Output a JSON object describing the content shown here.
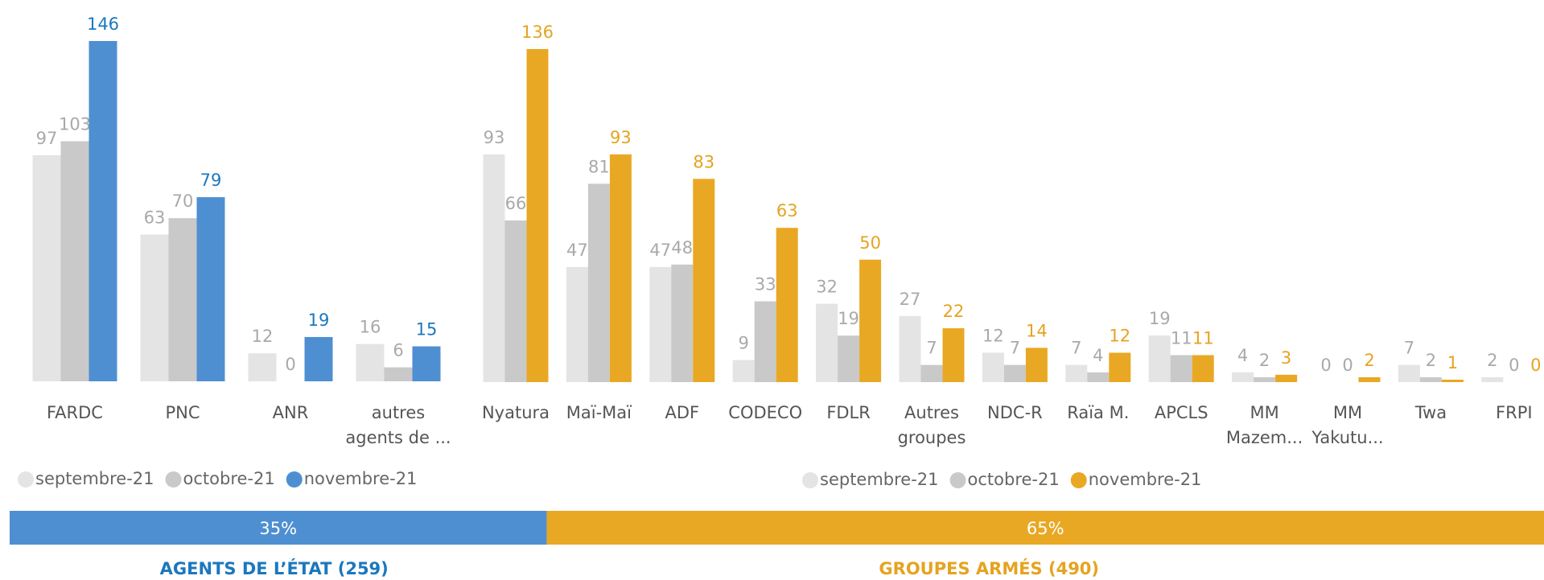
{
  "chart_data": [
    {
      "type": "bar",
      "categories": [
        "FARDC",
        "PNC",
        "ANR",
        "autres agents de ..."
      ],
      "series": [
        {
          "name": "septembre-21",
          "color": "#e4e4e4",
          "label_color": "#a9a9a9",
          "values": [
            97,
            63,
            12,
            16
          ]
        },
        {
          "name": "octobre-21",
          "color": "#c9c9c9",
          "label_color": "#a9a9a9",
          "values": [
            103,
            70,
            0,
            6
          ]
        },
        {
          "name": "novembre-21",
          "color": "#4e8fd1",
          "label_color": "#1b78bd",
          "values": [
            146,
            79,
            19,
            15
          ]
        }
      ]
    },
    {
      "type": "bar",
      "categories": [
        "Nyatura",
        "Maï-Maï",
        "ADF",
        "CODECO",
        "FDLR",
        "Autres groupes",
        "NDC-R",
        "Raïa M.",
        "APCLS",
        "MM Mazem...",
        "MM Yakutu...",
        "Twa",
        "FRPI"
      ],
      "series": [
        {
          "name": "septembre-21",
          "color": "#e4e4e4",
          "label_color": "#a9a9a9",
          "values": [
            93,
            47,
            47,
            9,
            32,
            27,
            12,
            7,
            19,
            4,
            0,
            7,
            2
          ]
        },
        {
          "name": "octobre-21",
          "color": "#c9c9c9",
          "label_color": "#a9a9a9",
          "values": [
            66,
            81,
            48,
            33,
            19,
            7,
            7,
            4,
            11,
            2,
            0,
            2,
            0
          ]
        },
        {
          "name": "novembre-21",
          "color": "#e9a823",
          "label_color": "#e6a320",
          "values": [
            136,
            93,
            83,
            63,
            50,
            22,
            14,
            12,
            11,
            3,
            2,
            1,
            0
          ]
        }
      ]
    },
    {
      "type": "split",
      "series": [
        {
          "name": "AGENTS DE L’ÉTAT (259)",
          "color": "#4e8fd1",
          "label_color": "#1b78bd",
          "values": [
            35
          ],
          "value_labels": [
            "35%"
          ]
        },
        {
          "name": "GROUPES ARMÉS (490)",
          "color": "#e9a823",
          "label_color": "#e6a320",
          "values": [
            65
          ],
          "value_labels": [
            "65%"
          ]
        }
      ]
    }
  ]
}
